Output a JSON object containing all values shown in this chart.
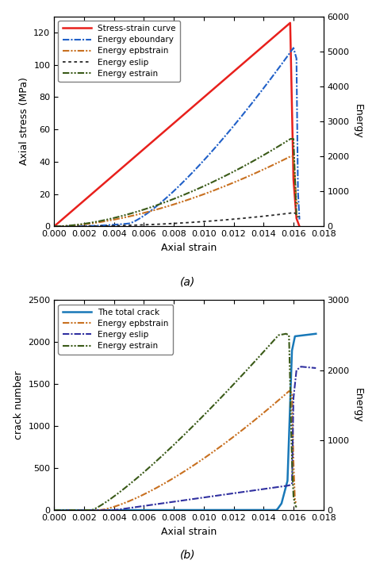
{
  "fig_width": 4.74,
  "fig_height": 7.11,
  "dpi": 100,
  "panel_a": {
    "xlabel": "Axial strain",
    "ylabel_left": "Axial stress (MPa)",
    "ylabel_right": "Energy",
    "xlim": [
      0.0,
      0.018
    ],
    "ylim_left": [
      0,
      130
    ],
    "ylim_right": [
      0,
      6000
    ],
    "xticks": [
      0.0,
      0.002,
      0.004,
      0.006,
      0.008,
      0.01,
      0.012,
      0.014,
      0.016,
      0.018
    ],
    "yticks_left": [
      0,
      20,
      40,
      60,
      80,
      100,
      120
    ],
    "yticks_right": [
      0,
      1000,
      2000,
      3000,
      4000,
      5000,
      6000
    ],
    "label_fontsize": 9,
    "tick_fontsize": 8,
    "legend_fontsize": 7.5,
    "panel_label": "(a)"
  },
  "panel_b": {
    "xlabel": "Axial strain",
    "ylabel_left": "crack number",
    "ylabel_right": "Energy",
    "xlim": [
      0.0,
      0.018
    ],
    "ylim_left": [
      0,
      2500
    ],
    "ylim_right": [
      0,
      3000
    ],
    "xticks": [
      0.0,
      0.002,
      0.004,
      0.006,
      0.008,
      0.01,
      0.012,
      0.014,
      0.016,
      0.018
    ],
    "yticks_left": [
      0,
      500,
      1000,
      1500,
      2000,
      2500
    ],
    "yticks_right": [
      0,
      1000,
      2000,
      3000
    ],
    "label_fontsize": 9,
    "tick_fontsize": 8,
    "legend_fontsize": 7.5,
    "panel_label": "(b)"
  },
  "colors": {
    "red": "#e8201c",
    "blue": "#2060c8",
    "orange": "#c87020",
    "dark": "#282828",
    "dark_green": "#3a5a18",
    "blue_purple": "#3030a0",
    "teal_blue": "#1878b8"
  }
}
